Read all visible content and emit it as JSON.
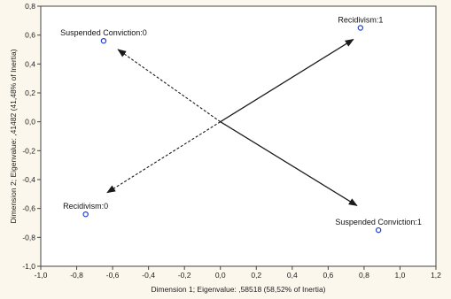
{
  "chart_data": {
    "type": "scatter",
    "title": "",
    "xlabel": "Dimension 1; Eigenvalue: ,58518 (58,52% of Inertia)",
    "ylabel": "Dimension 2; Eigenvalue: ,41482 (41,48% of Inertia)",
    "xlim": [
      -1.0,
      1.2
    ],
    "ylim": [
      -1.0,
      0.8
    ],
    "xticks": [
      "-1,0",
      "-0,8",
      "-0,6",
      "-0,4",
      "-0,2",
      "0,0",
      "0,2",
      "0,4",
      "0,6",
      "0,8",
      "1,0",
      "1,2"
    ],
    "yticks": [
      "0,8",
      "0,6",
      "0,4",
      "0,2",
      "0,0",
      "-0,2",
      "-0,4",
      "-0,6",
      "-0,8",
      "-1,0"
    ],
    "grid": false,
    "points": [
      {
        "label": "Suspended Conviction:0",
        "x": -0.65,
        "y": 0.56
      },
      {
        "label": "Recidivism:1",
        "x": 0.78,
        "y": 0.65
      },
      {
        "label": "Recidivism:0",
        "x": -0.75,
        "y": -0.64
      },
      {
        "label": "Suspended Conviction:1",
        "x": 0.88,
        "y": -0.75
      }
    ],
    "arrows": [
      {
        "from": [
          0,
          0
        ],
        "to": [
          0.74,
          0.57
        ],
        "style": "solid"
      },
      {
        "from": [
          0,
          0
        ],
        "to": [
          0.76,
          -0.58
        ],
        "style": "solid"
      },
      {
        "from": [
          0,
          0
        ],
        "to": [
          -0.57,
          0.5
        ],
        "style": "dashed"
      },
      {
        "from": [
          0,
          0
        ],
        "to": [
          -0.63,
          -0.49
        ],
        "style": "dashed"
      }
    ],
    "colors": {
      "point": "#1f3fd0",
      "arrow": "#1a1a1a",
      "plot_bg": "#ffffff",
      "page_bg": "#fbf7ec"
    }
  }
}
